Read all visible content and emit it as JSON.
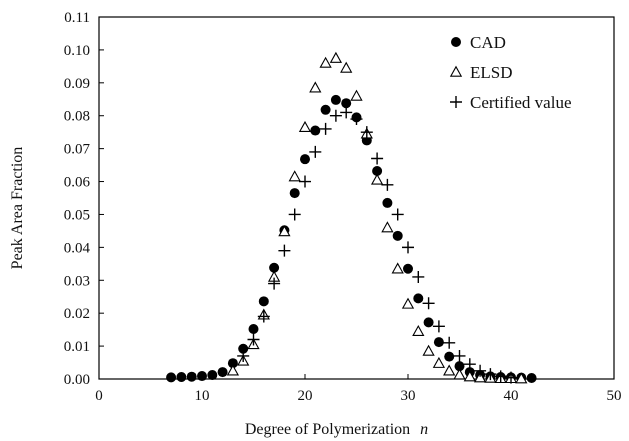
{
  "chart_data": {
    "type": "scatter",
    "xlabel": "Degree of Polymerization",
    "xlabel_var": "n",
    "ylabel": "Peak Area Fraction",
    "xlim": [
      0,
      50
    ],
    "ylim": [
      0,
      0.11
    ],
    "x_ticks": [
      "0",
      "10",
      "20",
      "30",
      "40",
      "50"
    ],
    "y_ticks": [
      "0.00",
      "0.01",
      "0.02",
      "0.03",
      "0.04",
      "0.05",
      "0.06",
      "0.07",
      "0.08",
      "0.09",
      "0.10",
      "0.11"
    ],
    "grid": false,
    "legend_position": "top-right",
    "series": [
      {
        "name": "CAD",
        "marker": "filled-circle",
        "color": "#000000",
        "x": [
          7,
          8,
          9,
          10,
          11,
          12,
          13,
          14,
          15,
          16,
          17,
          18,
          19,
          20,
          21,
          22,
          23,
          24,
          25,
          26,
          27,
          28,
          29,
          30,
          31,
          32,
          33,
          34,
          35,
          36,
          37,
          38,
          39,
          40,
          41,
          42
        ],
        "y": [
          0.0005,
          0.0006,
          0.0007,
          0.0009,
          0.0012,
          0.0021,
          0.0048,
          0.0092,
          0.0152,
          0.0236,
          0.0338,
          0.0452,
          0.0565,
          0.0668,
          0.0755,
          0.0818,
          0.0848,
          0.0838,
          0.0795,
          0.0725,
          0.0632,
          0.0535,
          0.0435,
          0.0335,
          0.0245,
          0.0172,
          0.0112,
          0.0068,
          0.0039,
          0.0021,
          0.0012,
          0.0008,
          0.0006,
          0.0005,
          0.0004,
          0.0003
        ]
      },
      {
        "name": "ELSD",
        "marker": "open-triangle",
        "color": "#000000",
        "x": [
          13,
          14,
          15,
          16,
          17,
          18,
          19,
          20,
          21,
          22,
          23,
          24,
          25,
          26,
          27,
          28,
          29,
          30,
          31,
          32,
          33,
          34,
          35,
          36,
          37,
          38,
          39,
          40,
          41
        ],
        "y": [
          0.0025,
          0.0055,
          0.0105,
          0.0195,
          0.031,
          0.0448,
          0.0615,
          0.0765,
          0.0885,
          0.096,
          0.0975,
          0.0945,
          0.086,
          0.0745,
          0.0605,
          0.046,
          0.0335,
          0.0228,
          0.0145,
          0.0085,
          0.0048,
          0.0025,
          0.0013,
          0.0007,
          0.0004,
          0.0003,
          0.0002,
          0.0002,
          0.0001
        ]
      },
      {
        "name": "Certified value",
        "marker": "plus",
        "color": "#000000",
        "x": [
          14,
          15,
          16,
          17,
          18,
          19,
          20,
          21,
          22,
          23,
          24,
          25,
          26,
          27,
          28,
          29,
          30,
          31,
          32,
          33,
          34,
          35,
          36,
          37,
          38,
          39,
          40
        ],
        "y": [
          0.007,
          0.012,
          0.019,
          0.029,
          0.039,
          0.05,
          0.06,
          0.069,
          0.076,
          0.08,
          0.081,
          0.079,
          0.075,
          0.067,
          0.059,
          0.05,
          0.04,
          0.031,
          0.023,
          0.016,
          0.011,
          0.007,
          0.0045,
          0.0025,
          0.0015,
          0.0008,
          0.0004
        ]
      }
    ]
  }
}
